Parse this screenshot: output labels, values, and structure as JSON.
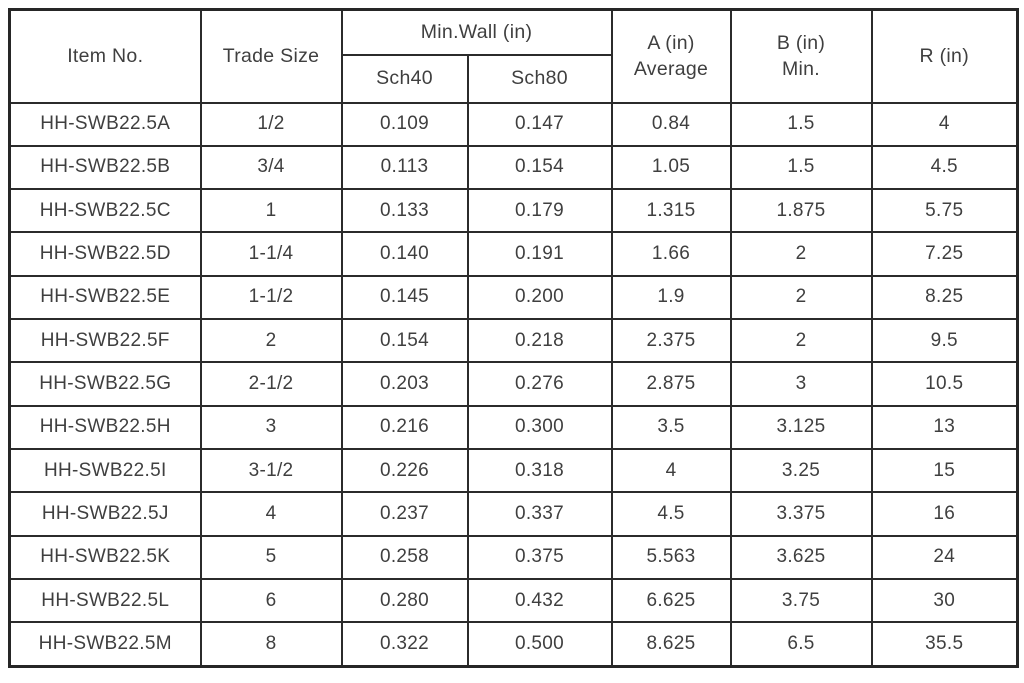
{
  "table": {
    "headers": {
      "item_no": "Item No.",
      "trade_size": "Trade Size",
      "min_wall_group": "Min.Wall (in)",
      "sch40": "Sch40",
      "sch80": "Sch80",
      "a_line1": "A (in)",
      "a_line2": "Average",
      "b_line1": "B (in)",
      "b_line2": "Min.",
      "r": "R (in)"
    },
    "rows": [
      {
        "item_no": "HH-SWB22.5A",
        "trade_size": "1/2",
        "sch40": "0.109",
        "sch80": "0.147",
        "a_average": "0.84",
        "b_min": "1.5",
        "r": "4"
      },
      {
        "item_no": "HH-SWB22.5B",
        "trade_size": "3/4",
        "sch40": "0.113",
        "sch80": "0.154",
        "a_average": "1.05",
        "b_min": "1.5",
        "r": "4.5"
      },
      {
        "item_no": "HH-SWB22.5C",
        "trade_size": "1",
        "sch40": "0.133",
        "sch80": "0.179",
        "a_average": "1.315",
        "b_min": "1.875",
        "r": "5.75"
      },
      {
        "item_no": "HH-SWB22.5D",
        "trade_size": "1-1/4",
        "sch40": "0.140",
        "sch80": "0.191",
        "a_average": "1.66",
        "b_min": "2",
        "r": "7.25"
      },
      {
        "item_no": "HH-SWB22.5E",
        "trade_size": "1-1/2",
        "sch40": "0.145",
        "sch80": "0.200",
        "a_average": "1.9",
        "b_min": "2",
        "r": "8.25"
      },
      {
        "item_no": "HH-SWB22.5F",
        "trade_size": "2",
        "sch40": "0.154",
        "sch80": "0.218",
        "a_average": "2.375",
        "b_min": "2",
        "r": "9.5"
      },
      {
        "item_no": "HH-SWB22.5G",
        "trade_size": "2-1/2",
        "sch40": "0.203",
        "sch80": "0.276",
        "a_average": "2.875",
        "b_min": "3",
        "r": "10.5"
      },
      {
        "item_no": "HH-SWB22.5H",
        "trade_size": "3",
        "sch40": "0.216",
        "sch80": "0.300",
        "a_average": "3.5",
        "b_min": "3.125",
        "r": "13"
      },
      {
        "item_no": "HH-SWB22.5I",
        "trade_size": "3-1/2",
        "sch40": "0.226",
        "sch80": "0.318",
        "a_average": "4",
        "b_min": "3.25",
        "r": "15"
      },
      {
        "item_no": "HH-SWB22.5J",
        "trade_size": "4",
        "sch40": "0.237",
        "sch80": "0.337",
        "a_average": "4.5",
        "b_min": "3.375",
        "r": "16"
      },
      {
        "item_no": "HH-SWB22.5K",
        "trade_size": "5",
        "sch40": "0.258",
        "sch80": "0.375",
        "a_average": "5.563",
        "b_min": "3.625",
        "r": "24"
      },
      {
        "item_no": "HH-SWB22.5L",
        "trade_size": "6",
        "sch40": "0.280",
        "sch80": "0.432",
        "a_average": "6.625",
        "b_min": "3.75",
        "r": "30"
      },
      {
        "item_no": "HH-SWB22.5M",
        "trade_size": "8",
        "sch40": "0.322",
        "sch80": "0.500",
        "a_average": "8.625",
        "b_min": "6.5",
        "r": "35.5"
      }
    ]
  },
  "colors": {
    "border": "#2b2b2b",
    "outer_border": "#262626",
    "text": "#3f3f3f",
    "background": "#ffffff"
  }
}
